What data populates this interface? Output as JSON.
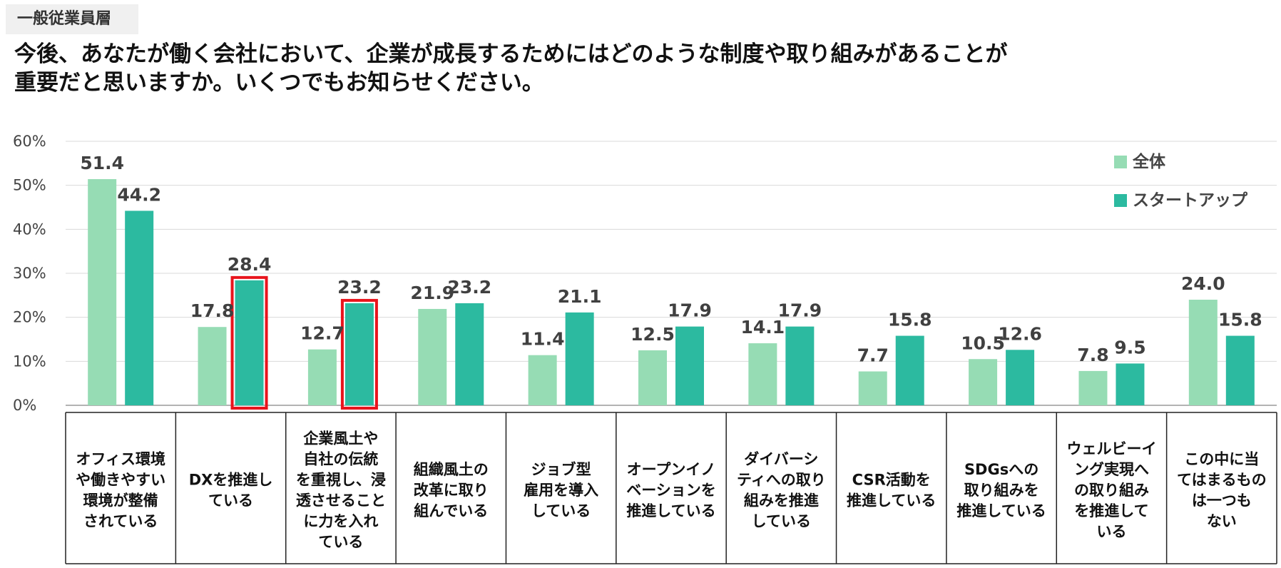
{
  "header": {
    "tag": "一般従業員層",
    "title_line1": "今後、あなたが働く会社において、企業が成長するためにはどのような制度や取り組みがあることが",
    "title_line2": "重要だと思いますか。いくつでもお知らせください。"
  },
  "chart_data": {
    "type": "bar",
    "title": "今後、あなたが働く会社において、企業が成長するためにはどのような制度や取り組みがあることが重要だと思いますか。いくつでもお知らせください。",
    "ylim": [
      0,
      60
    ],
    "yticks": [
      "0%",
      "10%",
      "20%",
      "30%",
      "40%",
      "50%",
      "60%"
    ],
    "legend_position": "top-right",
    "categories": [
      [
        "オフィス環境",
        "や働きやすい",
        "環境が整備",
        "されている"
      ],
      [
        "DXを推進し",
        "ている"
      ],
      [
        "企業風土や",
        "自社の伝統",
        "を重視し、浸",
        "透させること",
        "に力を入れ",
        "ている"
      ],
      [
        "組織風土の",
        "改革に取り",
        "組んでいる"
      ],
      [
        "ジョブ型",
        "雇用を導入",
        "している"
      ],
      [
        "オープンイノ",
        "ベーションを",
        "推進している"
      ],
      [
        "ダイバーシ",
        "ティへの取り",
        "組みを推進",
        "している"
      ],
      [
        "CSR活動を",
        "推進している"
      ],
      [
        "SDGsへの",
        "取り組みを",
        "推進している"
      ],
      [
        "ウェルビーイ",
        "ング実現へ",
        "の取り組み",
        "を推進して",
        "いる"
      ],
      [
        "この中に当",
        "てはまるもの",
        "は一つも",
        "ない"
      ]
    ],
    "series": [
      {
        "name": "全体",
        "color": "#96dcb4",
        "values": [
          51.4,
          17.8,
          12.7,
          21.9,
          11.4,
          12.5,
          14.1,
          7.7,
          10.5,
          7.8,
          24.0
        ],
        "labels": [
          "51.4",
          "17.8",
          "12.7",
          "21.9",
          "11.4",
          "12.5",
          "14.1",
          "7.7",
          "10.5",
          "7.8",
          "24.0"
        ]
      },
      {
        "name": "スタートアップ",
        "color": "#2cbaa0",
        "values": [
          44.2,
          28.4,
          23.2,
          23.2,
          21.1,
          17.9,
          17.9,
          15.8,
          12.6,
          9.5,
          15.8
        ],
        "labels": [
          "44.2",
          "28.4",
          "23.2",
          "23.2",
          "21.1",
          "17.9",
          "17.9",
          "15.8",
          "12.6",
          "9.5",
          "15.8"
        ]
      }
    ],
    "highlighted": [
      {
        "series": "スタートアップ",
        "category_index": 1
      },
      {
        "series": "スタートアップ",
        "category_index": 2
      }
    ],
    "highlight_color": "#e8141c"
  }
}
